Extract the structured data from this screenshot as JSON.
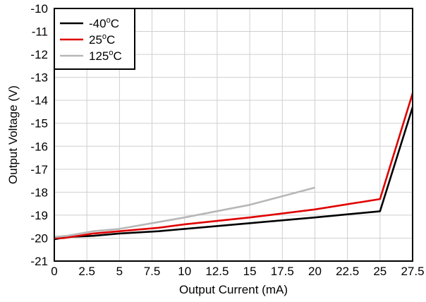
{
  "chart_data": {
    "type": "line",
    "xlabel": "Output Current (mA)",
    "ylabel": "Output Voltage (V)",
    "xlim": [
      0,
      27.5
    ],
    "ylim": [
      -21,
      -10
    ],
    "x_ticks": [
      "0",
      "2.5",
      "5",
      "7.5",
      "10",
      "12.5",
      "15",
      "17.5",
      "20",
      "22.5",
      "25",
      "27.5"
    ],
    "y_ticks": [
      "-10",
      "-11",
      "-12",
      "-13",
      "-14",
      "-15",
      "-16",
      "-17",
      "-18",
      "-19",
      "-20",
      "-21"
    ],
    "grid": true,
    "legend_position": "top-left",
    "series": [
      {
        "name": "-40°C",
        "color": "#000000",
        "points": [
          [
            0,
            -20.05
          ],
          [
            1,
            -19.95
          ],
          [
            3,
            -19.9
          ],
          [
            5,
            -19.8
          ],
          [
            8,
            -19.7
          ],
          [
            10,
            -19.6
          ],
          [
            15,
            -19.35
          ],
          [
            20,
            -19.1
          ],
          [
            25,
            -18.83
          ],
          [
            27.5,
            -14.3
          ]
        ]
      },
      {
        "name": "25°C",
        "color": "#e00000",
        "points": [
          [
            0,
            -20.0
          ],
          [
            0.7,
            -20.0
          ],
          [
            3,
            -19.8
          ],
          [
            5,
            -19.7
          ],
          [
            8,
            -19.55
          ],
          [
            10,
            -19.4
          ],
          [
            15,
            -19.1
          ],
          [
            20,
            -18.75
          ],
          [
            25,
            -18.3
          ],
          [
            27.5,
            -13.7
          ]
        ]
      },
      {
        "name": "125°C",
        "color": "#b7b7b7",
        "points": [
          [
            0,
            -19.95
          ],
          [
            1,
            -19.9
          ],
          [
            3,
            -19.7
          ],
          [
            5,
            -19.6
          ],
          [
            8,
            -19.3
          ],
          [
            10,
            -19.1
          ],
          [
            15,
            -18.55
          ],
          [
            20,
            -17.8
          ]
        ]
      }
    ]
  }
}
